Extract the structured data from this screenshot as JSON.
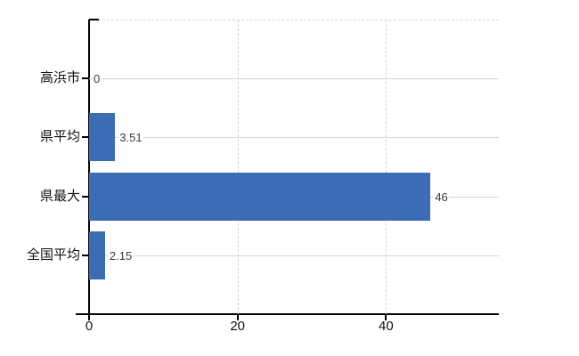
{
  "chart_data": {
    "type": "bar",
    "orientation": "horizontal",
    "title": "",
    "categories": [
      "高浜市",
      "県平均",
      "県最大",
      "全国平均"
    ],
    "values": [
      0,
      3.51,
      46,
      2.15
    ],
    "value_labels": [
      "0",
      "3.51",
      "46",
      "2.15"
    ],
    "x_ticks": [
      {
        "value": 0,
        "label": "0"
      },
      {
        "value": 20,
        "label": "20"
      },
      {
        "value": 40,
        "label": "40"
      }
    ],
    "xlim": [
      0,
      55.2
    ],
    "grid": true,
    "legend": "none",
    "colors": {
      "bar": "#3c6db4",
      "axis": "#000000",
      "h_gridline": "#cfd8cf",
      "v_gridline": "#d6d2d8",
      "value_label": "#3c3c3c",
      "axis_label": "#111111"
    }
  }
}
